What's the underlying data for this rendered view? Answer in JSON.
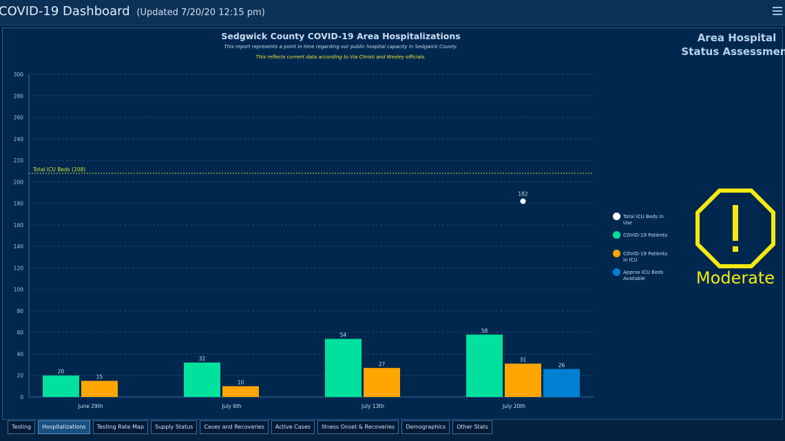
{
  "header": {
    "title": "COVID-19 Dashboard",
    "updated": "(Updated 7/20/20 12:15 pm)"
  },
  "chart_header": {
    "title": "Sedgwick County COVID-19 Area Hospitalizations",
    "subtitle": "This report represents a point in time regarding our public hospital capacity in Sedgwick County.",
    "note": "This reflects current data according to Via Christi and Wesley officials."
  },
  "chart_data": {
    "type": "bar",
    "categories": [
      "June 29th",
      "July 6th",
      "July 13th",
      "July 20th"
    ],
    "series": [
      {
        "name": "COVID-19 Patients",
        "values": [
          20,
          32,
          54,
          58
        ],
        "color": "#00e19e"
      },
      {
        "name": "COVID-19 Patients in ICU",
        "values": [
          15,
          10,
          27,
          31
        ],
        "color": "#ffa600"
      },
      {
        "name": "Approx ICU Beds Available",
        "values": [
          null,
          null,
          null,
          26
        ],
        "color": "#0280d4"
      },
      {
        "name": "Total ICU Beds In Use",
        "values": [
          null,
          null,
          null,
          182
        ],
        "color": "#ffffff",
        "marker": "point"
      }
    ],
    "reference_line": {
      "label": "Total ICU Beds (208)",
      "value": 208,
      "color": "#d7e236"
    },
    "ylim": [
      0,
      300
    ],
    "yticks": [
      0,
      20,
      40,
      60,
      80,
      100,
      120,
      140,
      160,
      180,
      200,
      220,
      240,
      260,
      280,
      300
    ],
    "grid": true,
    "legend_position": "right"
  },
  "legend": [
    {
      "label": "Total ICU Beds In Use",
      "color": "#ffffff"
    },
    {
      "label": "COVID-19 Patients",
      "color": "#00e19e"
    },
    {
      "label": "COVID-19 Patients in ICU",
      "color": "#ffa600"
    },
    {
      "label": "Approx ICU Beds Available",
      "color": "#0280d4"
    }
  ],
  "status": {
    "title_line1": "Area Hospital",
    "title_line2": "Status Assessment",
    "level": "Moderate",
    "icon": "octagon-exclamation-icon",
    "color": "#f4ea11"
  },
  "tabs": [
    {
      "label": "Testing",
      "active": false
    },
    {
      "label": "Hospitalizations",
      "active": true
    },
    {
      "label": "Testing Rate Map",
      "active": false
    },
    {
      "label": "Supply Status",
      "active": false
    },
    {
      "label": "Cases and Recoveries",
      "active": false
    },
    {
      "label": "Active Cases",
      "active": false
    },
    {
      "label": "Illness Onset & Recoveries",
      "active": false
    },
    {
      "label": "Demographics",
      "active": false
    },
    {
      "label": "Other Stats",
      "active": false
    }
  ]
}
